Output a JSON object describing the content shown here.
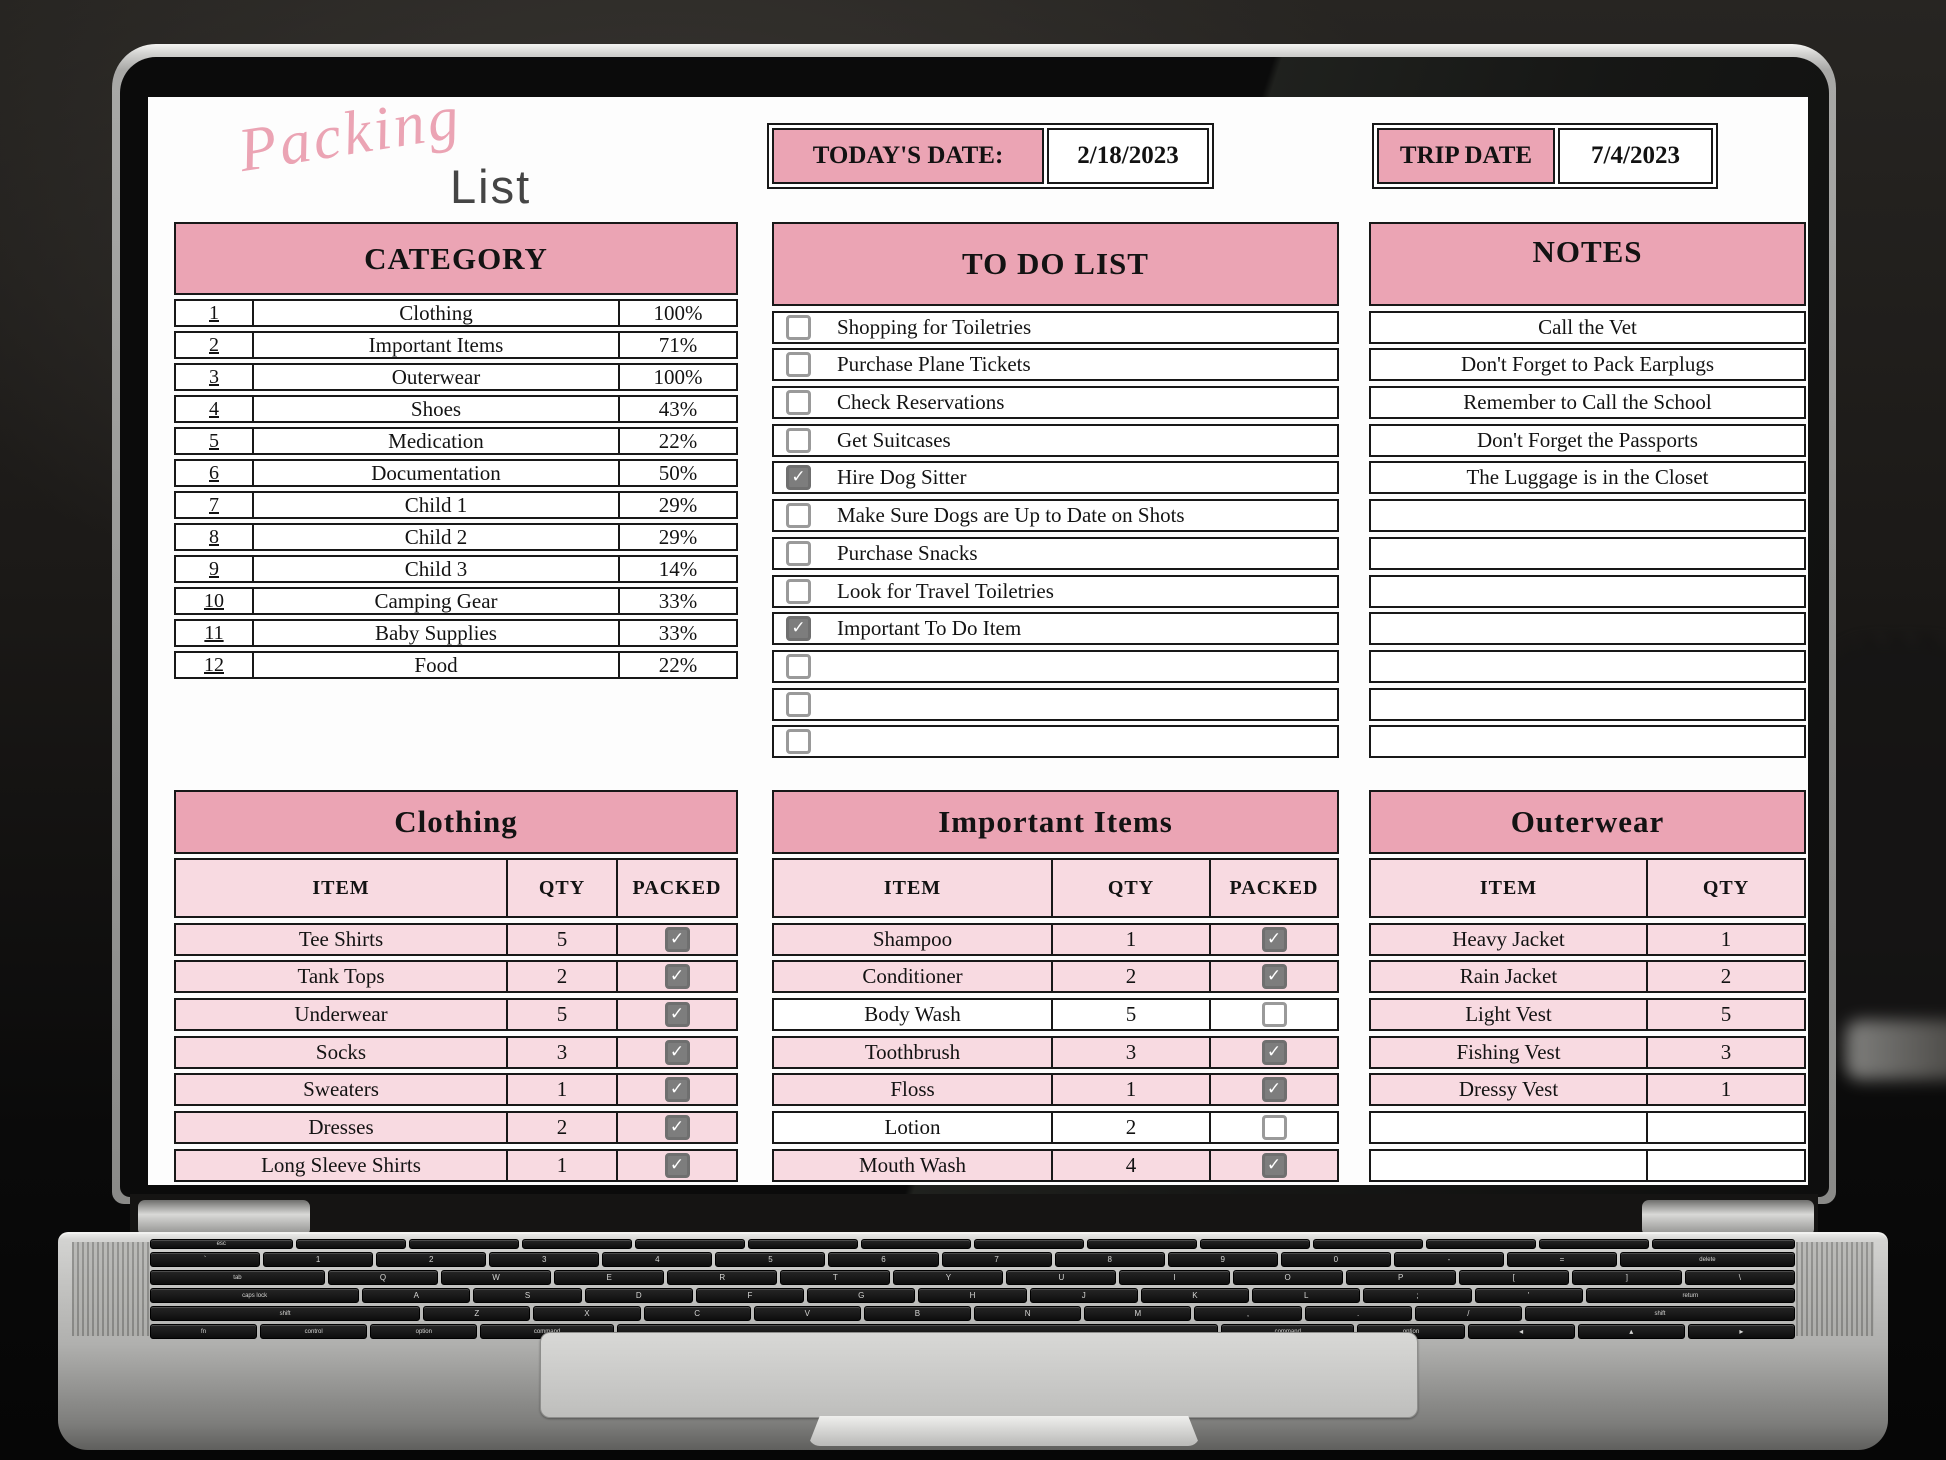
{
  "colors": {
    "pink_header": "#eba4b4",
    "pink_row": "#f8dae1",
    "border": "#181818",
    "check_gray": "#7d7d7d",
    "check_border": "#9a9a9a"
  },
  "icons": {
    "checkmark": "✓"
  },
  "logo": {
    "script": "Packing",
    "sub": "List"
  },
  "dates": {
    "today_label": "TODAY'S DATE:",
    "today_value": "2/18/2023",
    "trip_label": "TRIP DATE",
    "trip_value": "7/4/2023"
  },
  "category": {
    "title": "CATEGORY",
    "rows": [
      {
        "num": "1",
        "name": "Clothing",
        "pct": "100%"
      },
      {
        "num": "2",
        "name": "Important Items",
        "pct": "71%"
      },
      {
        "num": "3",
        "name": "Outerwear",
        "pct": "100%"
      },
      {
        "num": "4",
        "name": "Shoes",
        "pct": "43%"
      },
      {
        "num": "5",
        "name": "Medication",
        "pct": "22%"
      },
      {
        "num": "6",
        "name": "Documentation",
        "pct": "50%"
      },
      {
        "num": "7",
        "name": "Child 1",
        "pct": "29%"
      },
      {
        "num": "8",
        "name": "Child 2",
        "pct": "29%"
      },
      {
        "num": "9",
        "name": "Child 3",
        "pct": "14%"
      },
      {
        "num": "10",
        "name": "Camping Gear",
        "pct": "33%"
      },
      {
        "num": "11",
        "name": "Baby Supplies",
        "pct": "33%"
      },
      {
        "num": "12",
        "name": "Food",
        "pct": "22%"
      }
    ]
  },
  "todo": {
    "title": "TO DO LIST",
    "items": [
      {
        "label": "Shopping for Toiletries",
        "checked": false
      },
      {
        "label": "Purchase Plane Tickets",
        "checked": false
      },
      {
        "label": "Check Reservations",
        "checked": false
      },
      {
        "label": "Get Suitcases",
        "checked": false
      },
      {
        "label": "Hire Dog Sitter",
        "checked": true
      },
      {
        "label": "Make Sure Dogs are Up to Date on Shots",
        "checked": false
      },
      {
        "label": "Purchase Snacks",
        "checked": false
      },
      {
        "label": "Look for Travel Toiletries",
        "checked": false
      },
      {
        "label": "Important To Do Item",
        "checked": true
      },
      {
        "label": "",
        "checked": false
      },
      {
        "label": "",
        "checked": false
      },
      {
        "label": "",
        "checked": false
      }
    ]
  },
  "notes": {
    "title": "NOTES",
    "items": [
      "Call the Vet",
      "Don't Forget to Pack Earplugs",
      "Remember to Call the School",
      "Don't Forget the Passports",
      "The Luggage is in the Closet",
      "",
      "",
      "",
      "",
      "",
      "",
      ""
    ]
  },
  "packing_tables": [
    {
      "title": "Clothing",
      "columns": [
        "ITEM",
        "QTY",
        "PACKED"
      ],
      "has_packed": true,
      "rows": [
        {
          "item": "Tee Shirts",
          "qty": "5",
          "packed": true,
          "highlight": true
        },
        {
          "item": "Tank Tops",
          "qty": "2",
          "packed": true,
          "highlight": true
        },
        {
          "item": "Underwear",
          "qty": "5",
          "packed": true,
          "highlight": true
        },
        {
          "item": "Socks",
          "qty": "3",
          "packed": true,
          "highlight": true
        },
        {
          "item": "Sweaters",
          "qty": "1",
          "packed": true,
          "highlight": true
        },
        {
          "item": "Dresses",
          "qty": "2",
          "packed": true,
          "highlight": true
        },
        {
          "item": "Long Sleeve Shirts",
          "qty": "1",
          "packed": true,
          "highlight": true
        }
      ]
    },
    {
      "title": "Important Items",
      "columns": [
        "ITEM",
        "QTY",
        "PACKED"
      ],
      "has_packed": true,
      "rows": [
        {
          "item": "Shampoo",
          "qty": "1",
          "packed": true,
          "highlight": true
        },
        {
          "item": "Conditioner",
          "qty": "2",
          "packed": true,
          "highlight": true
        },
        {
          "item": "Body Wash",
          "qty": "5",
          "packed": false,
          "highlight": false
        },
        {
          "item": "Toothbrush",
          "qty": "3",
          "packed": true,
          "highlight": true
        },
        {
          "item": "Floss",
          "qty": "1",
          "packed": true,
          "highlight": true
        },
        {
          "item": "Lotion",
          "qty": "2",
          "packed": false,
          "highlight": false
        },
        {
          "item": "Mouth Wash",
          "qty": "4",
          "packed": true,
          "highlight": true
        }
      ]
    },
    {
      "title": "Outerwear",
      "columns": [
        "ITEM",
        "QTY"
      ],
      "has_packed": false,
      "rows": [
        {
          "item": "Heavy Jacket",
          "qty": "1",
          "highlight": true
        },
        {
          "item": "Rain Jacket",
          "qty": "2",
          "highlight": true
        },
        {
          "item": "Light Vest",
          "qty": "5",
          "highlight": true
        },
        {
          "item": "Fishing Vest",
          "qty": "3",
          "highlight": true
        },
        {
          "item": "Dressy Vest",
          "qty": "1",
          "highlight": true
        },
        {
          "item": "",
          "qty": "",
          "highlight": false
        },
        {
          "item": "",
          "qty": "",
          "highlight": false
        }
      ]
    }
  ],
  "keyboard": {
    "rows": [
      {
        "h": 10,
        "keys": [
          [
            "esc",
            1.3
          ],
          [
            "",
            1
          ],
          [
            "",
            1
          ],
          [
            "",
            1
          ],
          [
            "",
            1
          ],
          [
            "",
            1
          ],
          [
            "",
            1
          ],
          [
            "",
            1
          ],
          [
            "",
            1
          ],
          [
            "",
            1
          ],
          [
            "",
            1
          ],
          [
            "",
            1
          ],
          [
            "",
            1
          ],
          [
            "",
            1.3
          ]
        ]
      },
      {
        "h": 15,
        "keys": [
          [
            "`",
            1
          ],
          [
            "1",
            1
          ],
          [
            "2",
            1
          ],
          [
            "3",
            1
          ],
          [
            "4",
            1
          ],
          [
            "5",
            1
          ],
          [
            "6",
            1
          ],
          [
            "7",
            1
          ],
          [
            "8",
            1
          ],
          [
            "9",
            1
          ],
          [
            "0",
            1
          ],
          [
            "-",
            1
          ],
          [
            "=",
            1
          ],
          [
            "delete",
            1.6
          ]
        ]
      },
      {
        "h": 15,
        "keys": [
          [
            "tab",
            1.6
          ],
          [
            "Q",
            1
          ],
          [
            "W",
            1
          ],
          [
            "E",
            1
          ],
          [
            "R",
            1
          ],
          [
            "T",
            1
          ],
          [
            "Y",
            1
          ],
          [
            "U",
            1
          ],
          [
            "I",
            1
          ],
          [
            "O",
            1
          ],
          [
            "P",
            1
          ],
          [
            "[",
            1
          ],
          [
            "]",
            1
          ],
          [
            "\\",
            1
          ]
        ]
      },
      {
        "h": 15,
        "keys": [
          [
            "caps lock",
            1.95
          ],
          [
            "A",
            1
          ],
          [
            "S",
            1
          ],
          [
            "D",
            1
          ],
          [
            "F",
            1
          ],
          [
            "G",
            1
          ],
          [
            "H",
            1
          ],
          [
            "J",
            1
          ],
          [
            "K",
            1
          ],
          [
            "L",
            1
          ],
          [
            ";",
            1
          ],
          [
            "'",
            1
          ],
          [
            "return",
            1.95
          ]
        ]
      },
      {
        "h": 15,
        "keys": [
          [
            "shift",
            2.55
          ],
          [
            "Z",
            1
          ],
          [
            "X",
            1
          ],
          [
            "C",
            1
          ],
          [
            "V",
            1
          ],
          [
            "B",
            1
          ],
          [
            "N",
            1
          ],
          [
            "M",
            1
          ],
          [
            ",",
            1
          ],
          [
            ".",
            1
          ],
          [
            "/",
            1
          ],
          [
            "shift",
            2.55
          ]
        ]
      },
      {
        "h": 15,
        "keys": [
          [
            "fn",
            1
          ],
          [
            "control",
            1
          ],
          [
            "option",
            1
          ],
          [
            "command",
            1.25
          ],
          [
            "",
            5.7
          ],
          [
            "command",
            1.25
          ],
          [
            "option",
            1
          ],
          [
            "◂",
            1
          ],
          [
            "▴",
            1
          ],
          [
            "▸",
            1
          ]
        ]
      }
    ]
  }
}
